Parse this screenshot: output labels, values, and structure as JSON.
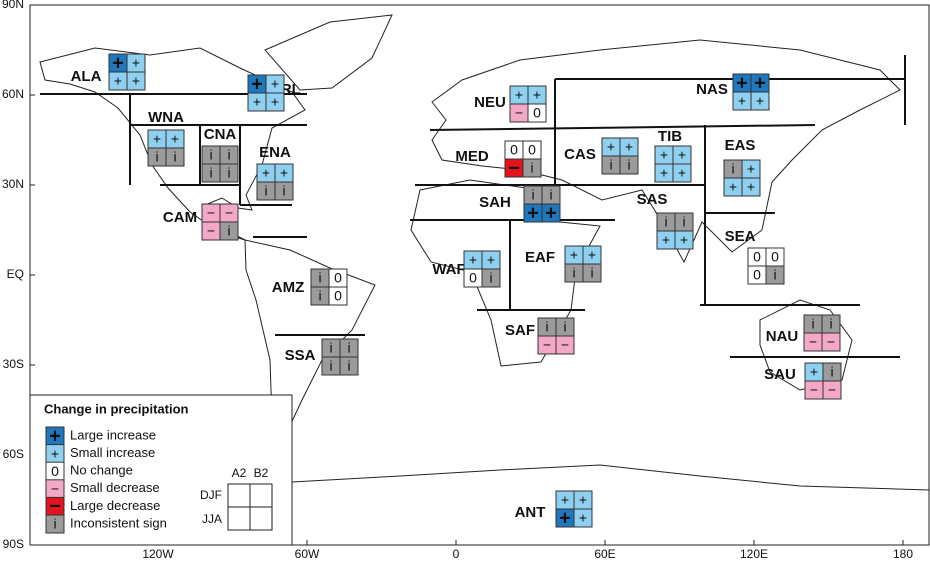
{
  "map": {
    "lat_ticks": [
      {
        "value": 90,
        "label": "90N"
      },
      {
        "value": 60,
        "label": "60N"
      },
      {
        "value": 30,
        "label": "30N"
      },
      {
        "value": 0,
        "label": "EQ"
      },
      {
        "value": -30,
        "label": "30S"
      },
      {
        "value": -60,
        "label": "60S"
      },
      {
        "value": -90,
        "label": "90S"
      }
    ],
    "lon_ticks": [
      {
        "value": -120,
        "label": "120W"
      },
      {
        "value": -60,
        "label": "60W"
      },
      0,
      {
        "value": 60,
        "label": "60E"
      },
      {
        "value": 120,
        "label": "120E"
      },
      180
    ]
  },
  "regions": [
    {
      "name": "ALA",
      "cells": [
        "Large increase",
        "Small increase",
        "Small increase",
        "Small increase"
      ]
    },
    {
      "name": "GRL",
      "cells": [
        "Large increase",
        "Small increase",
        "Small increase",
        "Small increase"
      ]
    },
    {
      "name": "WNA",
      "cells": [
        "Small increase",
        "Small increase",
        "Inconsistent sign",
        "Inconsistent sign"
      ]
    },
    {
      "name": "CNA",
      "cells": [
        "Inconsistent sign",
        "Inconsistent sign",
        "Inconsistent sign",
        "Inconsistent sign"
      ]
    },
    {
      "name": "ENA",
      "cells": [
        "Small increase",
        "Small increase",
        "Inconsistent sign",
        "Inconsistent sign"
      ]
    },
    {
      "name": "CAM",
      "cells": [
        "Small decrease",
        "Small decrease",
        "Small decrease",
        "Inconsistent sign"
      ]
    },
    {
      "name": "AMZ",
      "cells": [
        "Inconsistent sign",
        "No change",
        "Inconsistent sign",
        "No change"
      ]
    },
    {
      "name": "SSA",
      "cells": [
        "Inconsistent sign",
        "Inconsistent sign",
        "Inconsistent sign",
        "Inconsistent sign"
      ]
    },
    {
      "name": "NEU",
      "cells": [
        "Small increase",
        "Small increase",
        "Small decrease",
        "No change"
      ]
    },
    {
      "name": "MED",
      "cells": [
        "No change",
        "No change",
        "Large decrease",
        "Inconsistent sign"
      ]
    },
    {
      "name": "SAH",
      "cells": [
        "Inconsistent sign",
        "Inconsistent sign",
        "Large increase",
        "Large increase"
      ]
    },
    {
      "name": "WAF",
      "cells": [
        "Small increase",
        "Small increase",
        "No change",
        "Inconsistent sign"
      ]
    },
    {
      "name": "EAF",
      "cells": [
        "Small increase",
        "Small increase",
        "Inconsistent sign",
        "Inconsistent sign"
      ]
    },
    {
      "name": "SAF",
      "cells": [
        "Inconsistent sign",
        "Inconsistent sign",
        "Small decrease",
        "Small decrease"
      ]
    },
    {
      "name": "CAS",
      "cells": [
        "Small increase",
        "Small increase",
        "Inconsistent sign",
        "Inconsistent sign"
      ]
    },
    {
      "name": "TIB",
      "cells": [
        "Small increase",
        "Small increase",
        "Small increase",
        "Small increase"
      ]
    },
    {
      "name": "NAS",
      "cells": [
        "Large increase",
        "Large increase",
        "Small increase",
        "Small increase"
      ]
    },
    {
      "name": "SAS",
      "cells": [
        "Inconsistent sign",
        "Inconsistent sign",
        "Small increase",
        "Small increase"
      ]
    },
    {
      "name": "EAS",
      "cells": [
        "Inconsistent sign",
        "Small increase",
        "Small increase",
        "Small increase"
      ]
    },
    {
      "name": "SEA",
      "cells": [
        "No change",
        "No change",
        "No change",
        "Inconsistent sign"
      ]
    },
    {
      "name": "NAU",
      "cells": [
        "Inconsistent sign",
        "Inconsistent sign",
        "Small decrease",
        "Small decrease"
      ]
    },
    {
      "name": "SAU",
      "cells": [
        "Small increase",
        "Inconsistent sign",
        "Small decrease",
        "Small decrease"
      ]
    },
    {
      "name": "ANT",
      "cells": [
        "Small increase",
        "Small increase",
        "Large increase",
        "Small increase"
      ]
    }
  ],
  "legend": {
    "title": "Change in precipitation",
    "items": [
      {
        "symbol": "+",
        "label": "Large increase",
        "color": "#1f78bd"
      },
      {
        "symbol": "+",
        "label": "Small increase",
        "color": "#8fd0f0"
      },
      {
        "symbol": "0",
        "label": "No change",
        "color": "#ffffff"
      },
      {
        "symbol": "−",
        "label": "Small decrease",
        "color": "#f3a8c8"
      },
      {
        "symbol": "−",
        "label": "Large decrease",
        "color": "#e3141e"
      },
      {
        "symbol": "i",
        "label": "Inconsistent sign",
        "color": "#9b9b9b"
      }
    ],
    "columns": [
      "A2",
      "B2"
    ],
    "rows": [
      "DJF",
      "JJA"
    ]
  }
}
